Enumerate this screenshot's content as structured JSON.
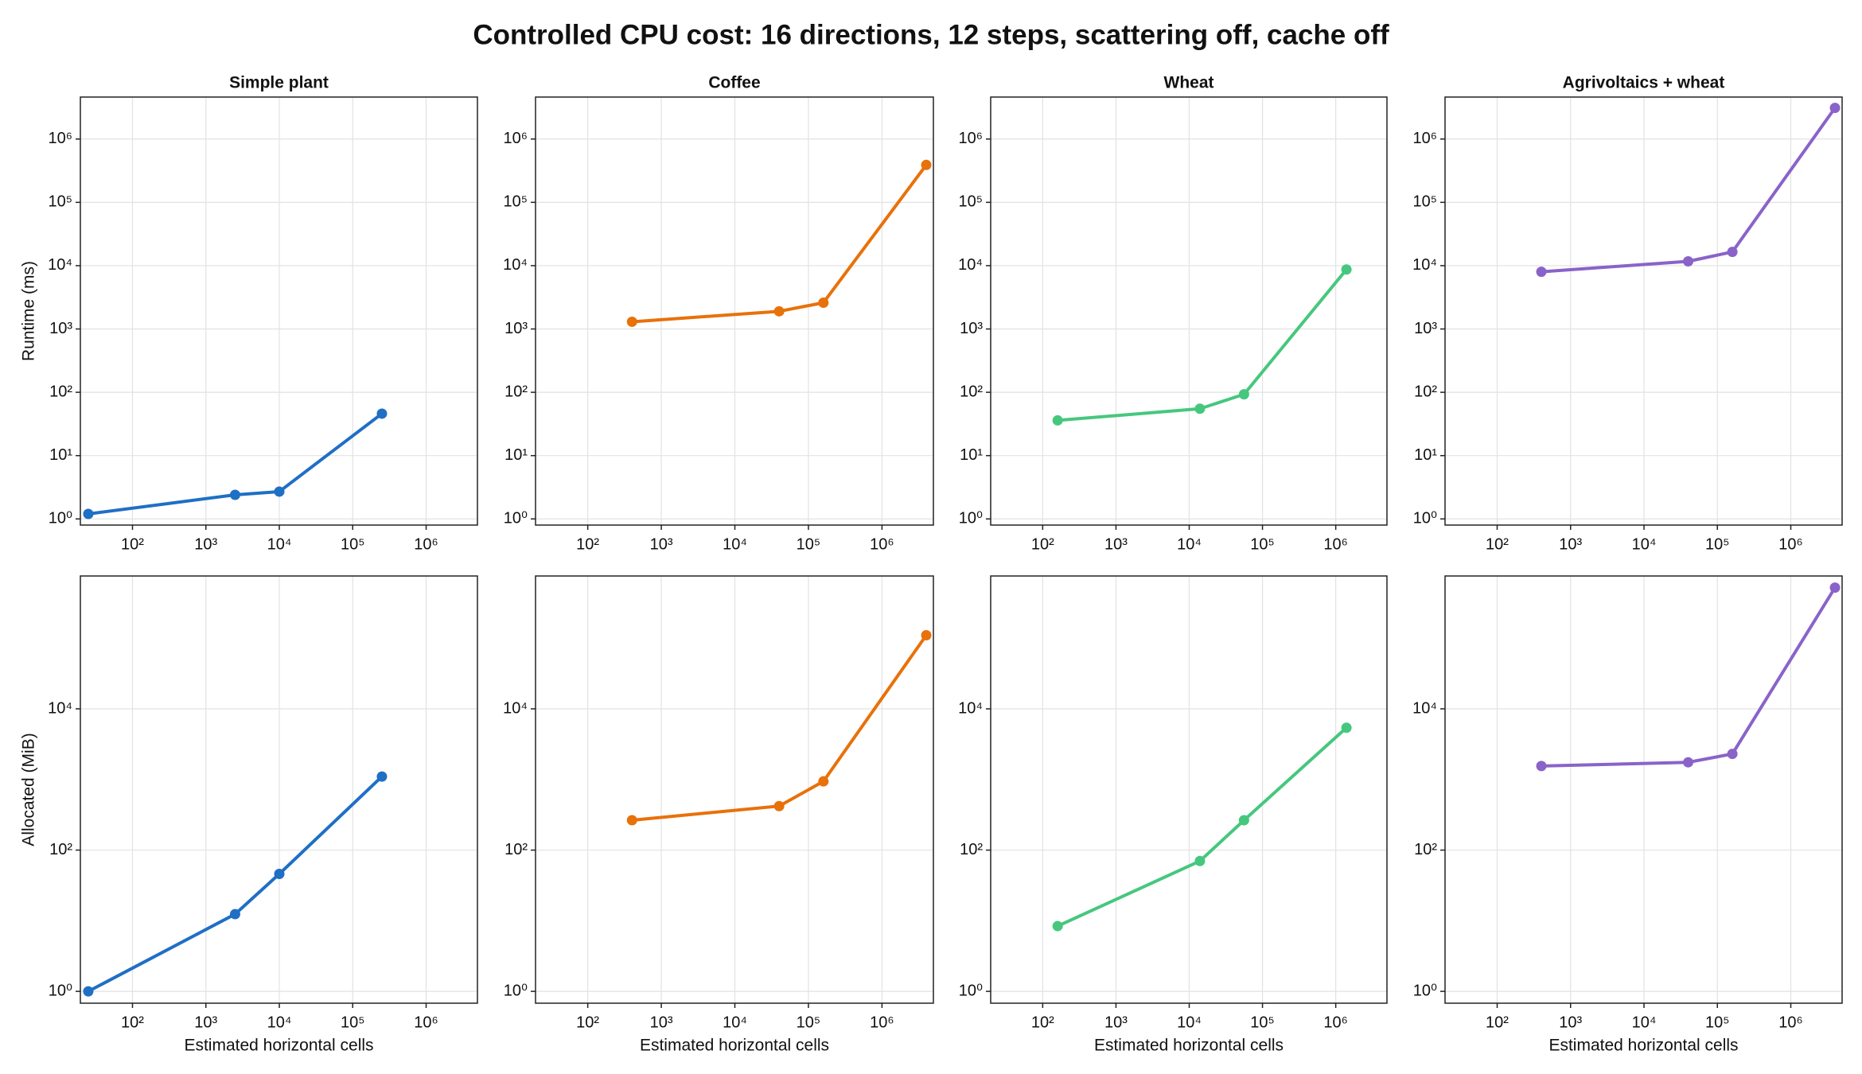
{
  "title": "Controlled CPU cost: 16 directions, 12 steps, scattering off, cache off",
  "chart_data": [
    {
      "type": "line",
      "title": "Simple plant",
      "ylabel": "Runtime (ms)",
      "xscale": "log",
      "yscale": "log",
      "grid": true,
      "markers": true,
      "color": "#1f6fc5",
      "x": [
        25,
        2500,
        10000,
        250000
      ],
      "values": [
        1.2,
        2.4,
        2.7,
        46
      ],
      "xlim": [
        19.5,
        5000000
      ],
      "ylim": [
        0.8,
        4600000
      ],
      "xticks": [
        {
          "value": 100,
          "label": "10²"
        },
        {
          "value": 1000,
          "label": "10³"
        },
        {
          "value": 10000,
          "label": "10⁴"
        },
        {
          "value": 100000,
          "label": "10⁵"
        },
        {
          "value": 1000000,
          "label": "10⁶"
        }
      ],
      "yticks": [
        {
          "value": 1,
          "label": "10⁰"
        },
        {
          "value": 10,
          "label": "10¹"
        },
        {
          "value": 100,
          "label": "10²"
        },
        {
          "value": 1000,
          "label": "10³"
        },
        {
          "value": 10000,
          "label": "10⁴"
        },
        {
          "value": 100000,
          "label": "10⁵"
        },
        {
          "value": 1000000,
          "label": "10⁶"
        }
      ]
    },
    {
      "type": "line",
      "title": "Coffee",
      "xscale": "log",
      "yscale": "log",
      "grid": true,
      "markers": true,
      "color": "#e8710a",
      "x": [
        400,
        40000,
        160000,
        4000000
      ],
      "values": [
        1300,
        1900,
        2600,
        390000
      ],
      "xlim": [
        19.5,
        5000000
      ],
      "ylim": [
        0.8,
        4600000
      ],
      "xticks": [
        {
          "value": 100,
          "label": "10²"
        },
        {
          "value": 1000,
          "label": "10³"
        },
        {
          "value": 10000,
          "label": "10⁴"
        },
        {
          "value": 100000,
          "label": "10⁵"
        },
        {
          "value": 1000000,
          "label": "10⁶"
        }
      ],
      "yticks": [
        {
          "value": 1,
          "label": "10⁰"
        },
        {
          "value": 10,
          "label": "10¹"
        },
        {
          "value": 100,
          "label": "10²"
        },
        {
          "value": 1000,
          "label": "10³"
        },
        {
          "value": 10000,
          "label": "10⁴"
        },
        {
          "value": 100000,
          "label": "10⁵"
        },
        {
          "value": 1000000,
          "label": "10⁶"
        }
      ]
    },
    {
      "type": "line",
      "title": "Wheat",
      "xscale": "log",
      "yscale": "log",
      "grid": true,
      "markers": true,
      "color": "#46c77e",
      "x": [
        160,
        14000,
        56000,
        1400000
      ],
      "values": [
        36,
        55,
        93,
        8700
      ],
      "xlim": [
        19.5,
        5000000
      ],
      "ylim": [
        0.8,
        4600000
      ],
      "xticks": [
        {
          "value": 100,
          "label": "10²"
        },
        {
          "value": 1000,
          "label": "10³"
        },
        {
          "value": 10000,
          "label": "10⁴"
        },
        {
          "value": 100000,
          "label": "10⁵"
        },
        {
          "value": 1000000,
          "label": "10⁶"
        }
      ],
      "yticks": [
        {
          "value": 1,
          "label": "10⁰"
        },
        {
          "value": 10,
          "label": "10¹"
        },
        {
          "value": 100,
          "label": "10²"
        },
        {
          "value": 1000,
          "label": "10³"
        },
        {
          "value": 10000,
          "label": "10⁴"
        },
        {
          "value": 100000,
          "label": "10⁵"
        },
        {
          "value": 1000000,
          "label": "10⁶"
        }
      ]
    },
    {
      "type": "line",
      "title": "Agrivoltaics + wheat",
      "xscale": "log",
      "yscale": "log",
      "grid": true,
      "markers": true,
      "color": "#8a63c9",
      "x": [
        400,
        40000,
        160000,
        4000000
      ],
      "values": [
        8000,
        11700,
        16500,
        3100000
      ],
      "xlim": [
        19.5,
        5000000
      ],
      "ylim": [
        0.8,
        4600000
      ],
      "xticks": [
        {
          "value": 100,
          "label": "10²"
        },
        {
          "value": 1000,
          "label": "10³"
        },
        {
          "value": 10000,
          "label": "10⁴"
        },
        {
          "value": 100000,
          "label": "10⁵"
        },
        {
          "value": 1000000,
          "label": "10⁶"
        }
      ],
      "yticks": [
        {
          "value": 1,
          "label": "10⁰"
        },
        {
          "value": 10,
          "label": "10¹"
        },
        {
          "value": 100,
          "label": "10²"
        },
        {
          "value": 1000,
          "label": "10³"
        },
        {
          "value": 10000,
          "label": "10⁴"
        },
        {
          "value": 100000,
          "label": "10⁵"
        },
        {
          "value": 1000000,
          "label": "10⁶"
        }
      ]
    },
    {
      "type": "line",
      "ylabel": "Allocated (MiB)",
      "xlabel": "Estimated horizontal cells",
      "xscale": "log",
      "yscale": "log",
      "grid": true,
      "markers": true,
      "color": "#1f6fc5",
      "x": [
        25,
        2500,
        10000,
        250000
      ],
      "values": [
        1,
        12.4,
        46,
        1100
      ],
      "xlim": [
        19.5,
        5000000
      ],
      "ylim": [
        0.68,
        760000
      ],
      "xticks": [
        {
          "value": 100,
          "label": "10²"
        },
        {
          "value": 1000,
          "label": "10³"
        },
        {
          "value": 10000,
          "label": "10⁴"
        },
        {
          "value": 100000,
          "label": "10⁵"
        },
        {
          "value": 1000000,
          "label": "10⁶"
        }
      ],
      "yticks": [
        {
          "value": 1,
          "label": "10⁰"
        },
        {
          "value": 100,
          "label": "10²"
        },
        {
          "value": 10000,
          "label": "10⁴"
        }
      ]
    },
    {
      "type": "line",
      "xlabel": "Estimated horizontal cells",
      "xscale": "log",
      "yscale": "log",
      "grid": true,
      "markers": true,
      "color": "#e8710a",
      "x": [
        400,
        40000,
        160000,
        4000000
      ],
      "values": [
        265,
        420,
        940,
        110000
      ],
      "xlim": [
        19.5,
        5000000
      ],
      "ylim": [
        0.68,
        760000
      ],
      "xticks": [
        {
          "value": 100,
          "label": "10²"
        },
        {
          "value": 1000,
          "label": "10³"
        },
        {
          "value": 10000,
          "label": "10⁴"
        },
        {
          "value": 100000,
          "label": "10⁵"
        },
        {
          "value": 1000000,
          "label": "10⁶"
        }
      ],
      "yticks": [
        {
          "value": 1,
          "label": "10⁰"
        },
        {
          "value": 100,
          "label": "10²"
        },
        {
          "value": 10000,
          "label": "10⁴"
        }
      ]
    },
    {
      "type": "line",
      "xlabel": "Estimated horizontal cells",
      "xscale": "log",
      "yscale": "log",
      "grid": true,
      "markers": true,
      "color": "#46c77e",
      "x": [
        160,
        14000,
        56000,
        1400000
      ],
      "values": [
        8.4,
        70,
        265,
        5400
      ],
      "xlim": [
        19.5,
        5000000
      ],
      "ylim": [
        0.68,
        760000
      ],
      "xticks": [
        {
          "value": 100,
          "label": "10²"
        },
        {
          "value": 1000,
          "label": "10³"
        },
        {
          "value": 10000,
          "label": "10⁴"
        },
        {
          "value": 100000,
          "label": "10⁵"
        },
        {
          "value": 1000000,
          "label": "10⁶"
        }
      ],
      "yticks": [
        {
          "value": 1,
          "label": "10⁰"
        },
        {
          "value": 100,
          "label": "10²"
        },
        {
          "value": 10000,
          "label": "10⁴"
        }
      ]
    },
    {
      "type": "line",
      "xlabel": "Estimated horizontal cells",
      "xscale": "log",
      "yscale": "log",
      "grid": true,
      "markers": true,
      "color": "#8a63c9",
      "x": [
        400,
        40000,
        160000,
        4000000
      ],
      "values": [
        1550,
        1750,
        2300,
        520000
      ],
      "xlim": [
        19.5,
        5000000
      ],
      "ylim": [
        0.68,
        760000
      ],
      "xticks": [
        {
          "value": 100,
          "label": "10²"
        },
        {
          "value": 1000,
          "label": "10³"
        },
        {
          "value": 10000,
          "label": "10⁴"
        },
        {
          "value": 100000,
          "label": "10⁵"
        },
        {
          "value": 1000000,
          "label": "10⁶"
        }
      ],
      "yticks": [
        {
          "value": 1,
          "label": "10⁰"
        },
        {
          "value": 100,
          "label": "10²"
        },
        {
          "value": 10000,
          "label": "10⁴"
        }
      ]
    }
  ]
}
